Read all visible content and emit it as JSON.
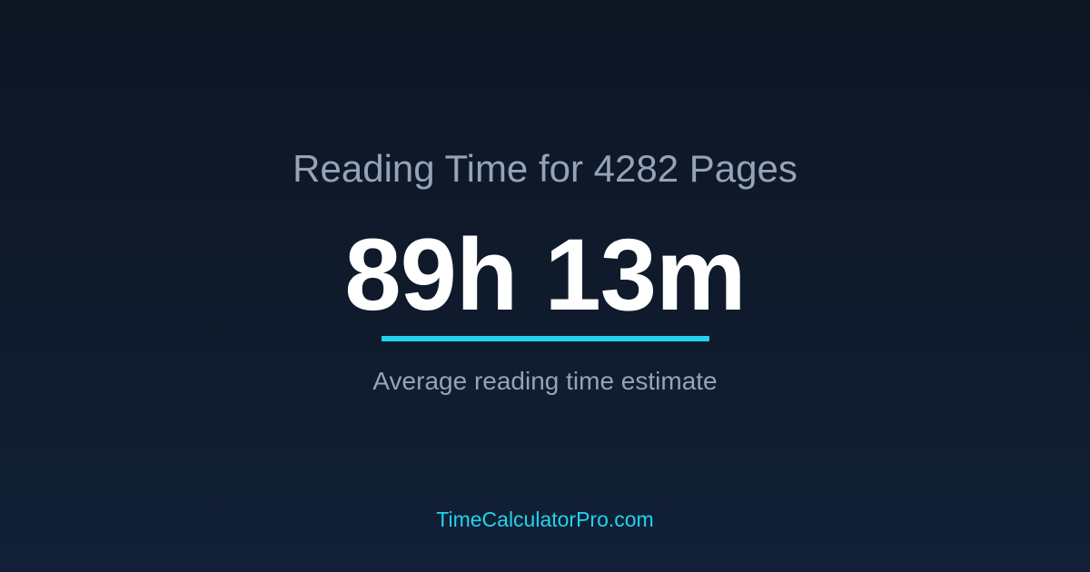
{
  "title": "Reading Time for 4282 Pages",
  "value": "89h 13m",
  "subtitle": "Average reading time estimate",
  "footer": "TimeCalculatorPro.com",
  "colors": {
    "accent": "#22d3ee",
    "muted_text": "#94a3b8"
  }
}
